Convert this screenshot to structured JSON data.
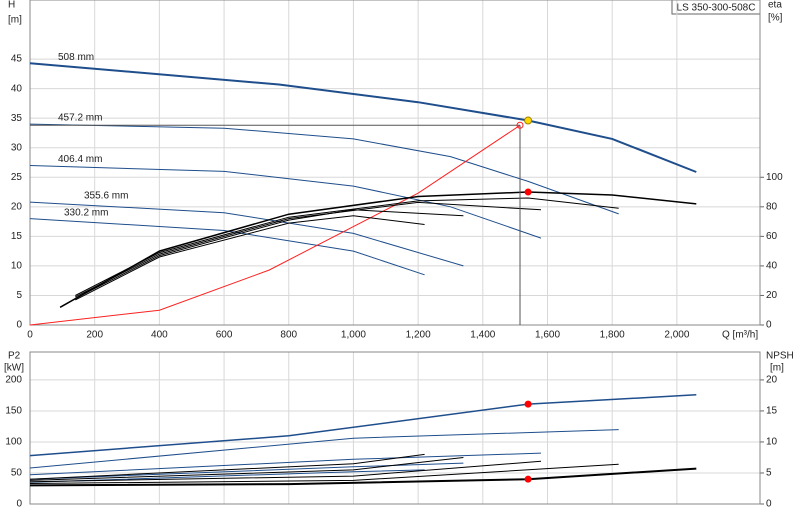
{
  "chart_data": [
    {
      "type": "line",
      "title": "LS 350-300-508C",
      "ylabel": "H",
      "yunit": "[m]",
      "y2label": "eta",
      "y2unit": "[%]",
      "xlabel": "Q [m³/h]",
      "xlim": [
        0,
        2257
      ],
      "xticks": [
        0,
        200,
        400,
        600,
        800,
        {
          "value": 1000,
          "label": "1,000"
        },
        {
          "value": 1200,
          "label": "1,200"
        },
        {
          "value": 1400,
          "label": "1,400"
        },
        {
          "value": 1600,
          "label": "1,600"
        },
        {
          "value": 1800,
          "label": "1,800"
        },
        {
          "value": 2000,
          "label": "2,000"
        }
      ],
      "ylim": [
        0,
        55
      ],
      "yticks": [
        0,
        5,
        10,
        15,
        20,
        25,
        30,
        35,
        40,
        45
      ],
      "y2lim": [
        0,
        220
      ],
      "y2ticks": [
        0,
        20,
        40,
        60,
        80,
        100
      ],
      "grid": true,
      "series": [
        {
          "name": "508 mm",
          "color": "#1f4e8c",
          "width": 2,
          "x": [
            0,
            770,
            1200,
            1540,
            1800,
            2060
          ],
          "values": [
            44.3,
            40.7,
            37.7,
            34.6,
            31.5,
            25.9
          ]
        },
        {
          "name": "457.2 mm",
          "color": "#1f4e8c",
          "width": 1,
          "x": [
            0,
            600,
            1000,
            1300,
            1540,
            1820
          ],
          "values": [
            34,
            33.3,
            31.5,
            28.5,
            24.3,
            18.8
          ]
        },
        {
          "name": "406.4 mm",
          "color": "#1f4e8c",
          "width": 1,
          "x": [
            0,
            600,
            1000,
            1300,
            1580
          ],
          "values": [
            27,
            26,
            23.5,
            20,
            14.7
          ]
        },
        {
          "name": "355.6 mm",
          "color": "#1f4e8c",
          "width": 1,
          "x": [
            0,
            600,
            1000,
            1340
          ],
          "values": [
            20.8,
            19,
            15.5,
            10
          ]
        },
        {
          "name": "330.2 mm",
          "color": "#1f4e8c",
          "width": 1,
          "x": [
            0,
            600,
            1000,
            1220
          ],
          "values": [
            18,
            16,
            12.5,
            8.5
          ]
        },
        {
          "color": "#ff2020",
          "width": 1,
          "x": [
            0,
            400,
            740,
            1200,
            1515
          ],
          "values": [
            0,
            2.5,
            9.3,
            22.3,
            33.8
          ]
        },
        {
          "axis": "y2",
          "color": "#000000",
          "width": 1.5,
          "x": [
            93,
            400,
            800,
            1200,
            1540,
            1800,
            2060
          ],
          "values": [
            12,
            50,
            75,
            87,
            90,
            88,
            82
          ]
        },
        {
          "axis": "y2",
          "color": "#000000",
          "width": 1,
          "x": [
            140,
            400,
            800,
            1200,
            1540,
            1820
          ],
          "values": [
            20,
            49,
            73,
            84,
            86,
            79
          ]
        },
        {
          "axis": "y2",
          "color": "#000000",
          "width": 1,
          "x": [
            140,
            400,
            800,
            1200,
            1580
          ],
          "values": [
            19,
            48,
            72,
            83,
            78
          ]
        },
        {
          "axis": "y2",
          "color": "#000000",
          "width": 1,
          "x": [
            140,
            400,
            800,
            1000,
            1340
          ],
          "values": [
            18,
            47,
            71,
            78,
            74
          ]
        },
        {
          "axis": "y2",
          "color": "#000000",
          "width": 1,
          "x": [
            140,
            400,
            800,
            1000,
            1220
          ],
          "values": [
            17,
            46,
            69,
            74,
            68
          ]
        }
      ],
      "markers": [
        {
          "x": 1540,
          "y": 34.6,
          "color": "#ffd700"
        },
        {
          "x": 1540,
          "y": 90,
          "axis": "y2",
          "color": "#ff0000"
        }
      ]
    },
    {
      "type": "line",
      "ylabel": "P2",
      "yunit": "[kW]",
      "y2label": "NPSH",
      "y2unit": "[m]",
      "xlim": [
        0,
        2257
      ],
      "ylim": [
        0,
        245
      ],
      "yticks": [
        0,
        50,
        100,
        150,
        200
      ],
      "y2lim": [
        0,
        24.5
      ],
      "y2ticks": [
        0,
        5,
        10,
        15,
        20
      ],
      "grid": true,
      "series": [
        {
          "color": "#1f4e8c",
          "width": 1.5,
          "x": [
            0,
            800,
            1540,
            2060
          ],
          "values": [
            78,
            110,
            161,
            176
          ]
        },
        {
          "color": "#1f4e8c",
          "width": 1,
          "x": [
            0,
            1000,
            1820
          ],
          "values": [
            58,
            106,
            120
          ]
        },
        {
          "color": "#1f4e8c",
          "width": 1,
          "x": [
            0,
            1000,
            1580
          ],
          "values": [
            47,
            72,
            82
          ]
        },
        {
          "color": "#1f4e8c",
          "width": 1,
          "x": [
            0,
            1000,
            1340
          ],
          "values": [
            40,
            60,
            66
          ]
        },
        {
          "color": "#1f4e8c",
          "width": 1,
          "x": [
            0,
            1000,
            1220
          ],
          "values": [
            35,
            52,
            55
          ]
        },
        {
          "axis": "y2",
          "color": "#000000",
          "width": 2,
          "x": [
            0,
            800,
            1540,
            2060
          ],
          "values": [
            3,
            3.2,
            4,
            5.7
          ]
        },
        {
          "axis": "y2",
          "color": "#000000",
          "width": 1,
          "x": [
            0,
            1000,
            1820
          ],
          "values": [
            3.3,
            3.8,
            6.4
          ]
        },
        {
          "axis": "y2",
          "color": "#000000",
          "width": 1,
          "x": [
            0,
            1000,
            1580
          ],
          "values": [
            3.6,
            4.5,
            6.9
          ]
        },
        {
          "axis": "y2",
          "color": "#000000",
          "width": 1,
          "x": [
            0,
            1000,
            1340
          ],
          "values": [
            3.8,
            5.5,
            7.5
          ]
        },
        {
          "axis": "y2",
          "color": "#000000",
          "width": 1,
          "x": [
            0,
            1000,
            1220
          ],
          "values": [
            4,
            6.5,
            8
          ]
        }
      ],
      "markers": [
        {
          "x": 1540,
          "y": 161,
          "color": "#ff0000"
        },
        {
          "x": 1540,
          "y": 4,
          "axis": "y2",
          "color": "#ff0000"
        }
      ]
    }
  ]
}
